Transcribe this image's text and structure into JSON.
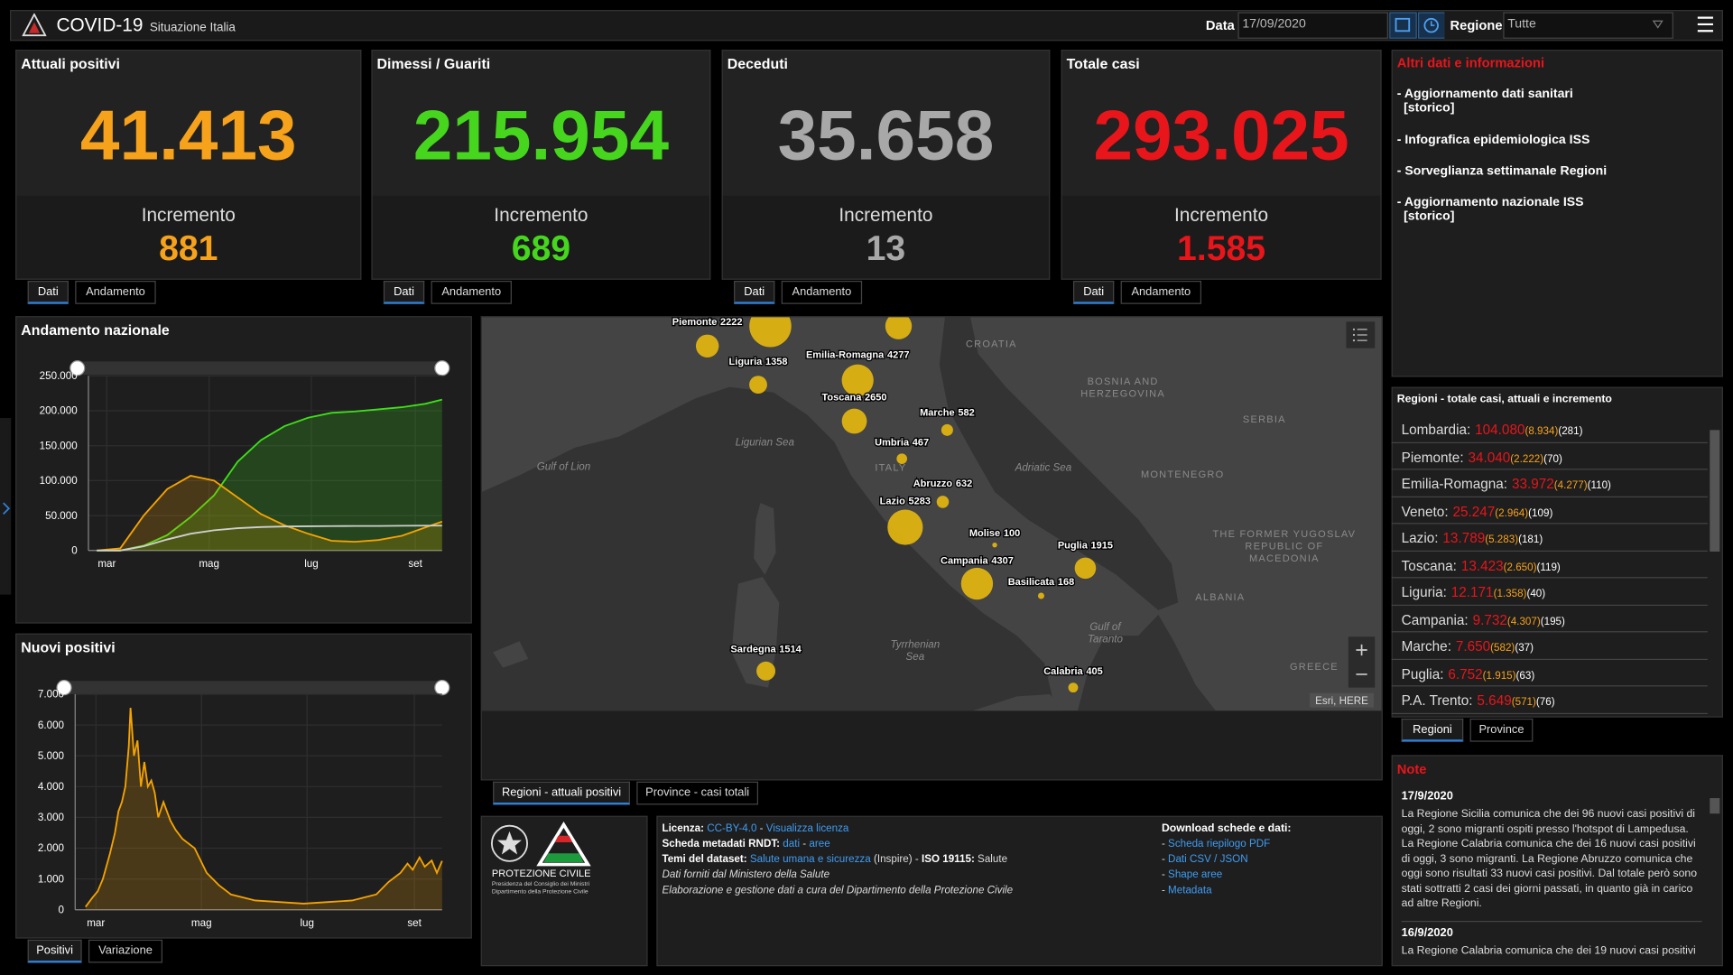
{
  "header": {
    "title": "COVID-19",
    "subtitle": "Situazione Italia",
    "date_label": "Data",
    "date": "17/09/2020",
    "region_label": "Regione",
    "region": "Tutte"
  },
  "cards": [
    {
      "title": "Attuali positivi",
      "value": "41.413",
      "increment_label": "Incremento",
      "increment": "881",
      "color": "#f7a21b",
      "tabs": [
        "Dati",
        "Andamento"
      ]
    },
    {
      "title": "Dimessi / Guariti",
      "value": "215.954",
      "increment_label": "Incremento",
      "increment": "689",
      "color": "#45d61d",
      "tabs": [
        "Dati",
        "Andamento"
      ]
    },
    {
      "title": "Deceduti",
      "value": "35.658",
      "increment_label": "Incremento",
      "increment": "13",
      "color": "#a8a8a8",
      "tabs": [
        "Dati",
        "Andamento"
      ]
    },
    {
      "title": "Totale casi",
      "value": "293.025",
      "increment_label": "Incremento",
      "increment": "1.585",
      "color": "#e8151b",
      "tabs": [
        "Dati",
        "Andamento"
      ]
    }
  ],
  "info": {
    "title": "Altri dati e informazioni",
    "links": [
      {
        "text": "- Aggiornamento dati sanitari",
        "sub": "[storico]"
      },
      {
        "text": "- Infografica epidemiologica ISS"
      },
      {
        "text": "- Sorveglianza settimanale Regioni"
      },
      {
        "text": "- Aggiornamento nazionale ISS",
        "sub": "[storico]"
      }
    ]
  },
  "trend_chart": {
    "type": "line",
    "title": "Andamento nazionale",
    "grid": true,
    "x": [
      0,
      14,
      28,
      42,
      56,
      70,
      84,
      98,
      112,
      126,
      140,
      154,
      168,
      182,
      196,
      206
    ],
    "xlim": [
      -5,
      206
    ],
    "xticks": [
      {
        "value": 6,
        "label": "mar"
      },
      {
        "value": 67,
        "label": "mag"
      },
      {
        "value": 128,
        "label": "lug"
      },
      {
        "value": 190,
        "label": "set"
      }
    ],
    "ylim": [
      0,
      250000
    ],
    "yticks": [
      0,
      {
        "value": 50000,
        "label": "50.000"
      },
      {
        "value": 100000,
        "label": "100.000"
      },
      {
        "value": 150000,
        "label": "150.000"
      },
      {
        "value": 200000,
        "label": "200.000"
      },
      {
        "value": 250000,
        "label": "250.000"
      }
    ],
    "series": [
      {
        "color": "#3ee01a",
        "area": true,
        "values": [
          0,
          0,
          7000,
          22000,
          48000,
          79000,
          127000,
          158000,
          178000,
          190000,
          197000,
          199000,
          202000,
          205000,
          210000,
          215954
        ]
      },
      {
        "color": "#f5a300",
        "area": true,
        "values": [
          0,
          3000,
          50000,
          88000,
          107000,
          100000,
          76000,
          52000,
          36000,
          24000,
          14000,
          12500,
          15000,
          21000,
          33000,
          41413
        ]
      },
      {
        "color": "#d0d0d0",
        "area": false,
        "values": [
          0,
          50,
          6000,
          15900,
          24000,
          29000,
          32000,
          33500,
          34400,
          34700,
          35000,
          35100,
          35200,
          35400,
          35550,
          35658
        ]
      }
    ]
  },
  "new_chart": {
    "type": "line",
    "title": "Nuovi positivi",
    "grid": true,
    "x": [
      0,
      4,
      7,
      10,
      14,
      17,
      19,
      21,
      23,
      25,
      26,
      28,
      30,
      32,
      34,
      36,
      38,
      40,
      42,
      45,
      49,
      52,
      56,
      63,
      70,
      77,
      84,
      91,
      98,
      112,
      126,
      140,
      154,
      161,
      168,
      175,
      182,
      186,
      189,
      193,
      196,
      200,
      203,
      206
    ],
    "xlim": [
      -6,
      206
    ],
    "xticks": [
      {
        "value": 6,
        "label": "mar"
      },
      {
        "value": 67,
        "label": "mag"
      },
      {
        "value": 128,
        "label": "lug"
      },
      {
        "value": 190,
        "label": "set"
      }
    ],
    "ylim": [
      0,
      7000
    ],
    "yticks": [
      0,
      {
        "value": 1000,
        "label": "1.000"
      },
      {
        "value": 2000,
        "label": "2.000"
      },
      {
        "value": 3000,
        "label": "3.000"
      },
      {
        "value": 4000,
        "label": "4.000"
      },
      {
        "value": 5000,
        "label": "5.000"
      },
      {
        "value": 6000,
        "label": "6.000"
      },
      {
        "value": 7000,
        "label": "7.000"
      }
    ],
    "series": [
      {
        "color": "#f5a300",
        "area": true,
        "values": [
          93,
          400,
          600,
          1000,
          1800,
          2500,
          3200,
          3500,
          4000,
          5300,
          6557,
          5000,
          5500,
          4000,
          4800,
          4000,
          4200,
          3800,
          3000,
          3500,
          2900,
          2600,
          2300,
          2000,
          1200,
          800,
          500,
          400,
          300,
          250,
          200,
          250,
          300,
          400,
          500,
          900,
          1200,
          1500,
          1300,
          1700,
          1400,
          1600,
          1200,
          1585
        ]
      }
    ],
    "tabs": [
      "Positivi",
      "Variazione"
    ]
  },
  "map": {
    "points": [
      {
        "name": "Piemonte",
        "value": 2222
      },
      {
        "name": "Liguria",
        "value": 1358
      },
      {
        "name": "Emilia-Romagna",
        "value": 4277
      },
      {
        "name": "Toscana",
        "value": 2650
      },
      {
        "name": "Marche",
        "value": 582
      },
      {
        "name": "Umbria",
        "value": 467
      },
      {
        "name": "Abruzzo",
        "value": 632
      },
      {
        "name": "Lazio",
        "value": 5283
      },
      {
        "name": "Molise",
        "value": 100
      },
      {
        "name": "Puglia",
        "value": 1915
      },
      {
        "name": "Campania",
        "value": 4307
      },
      {
        "name": "Basilicata",
        "value": 168
      },
      {
        "name": "Sardegna",
        "value": 1514
      },
      {
        "name": "Calabria",
        "value": 405
      }
    ],
    "labels": [
      {
        "lines": [
          "CROATIA"
        ]
      },
      {
        "lines": [
          "BOSNIA AND",
          "HERZEGOVINA"
        ]
      },
      {
        "lines": [
          "SERBIA"
        ]
      },
      {
        "lines": [
          "MONTENEGRO"
        ]
      },
      {
        "lines": [
          "ITALY"
        ]
      },
      {
        "lines": [
          "Ligurian Sea"
        ]
      },
      {
        "lines": [
          "Gulf of Lion"
        ]
      },
      {
        "lines": [
          "Adriatic Sea"
        ]
      },
      {
        "lines": [
          "Tyrrhenian",
          "Sea"
        ]
      },
      {
        "lines": [
          "Gulf of",
          "Taranto"
        ]
      },
      {
        "lines": [
          "ALBANIA"
        ]
      },
      {
        "lines": [
          "THE FORMER YUGOSLAV",
          "REPUBLIC OF",
          "MACEDONIA"
        ]
      },
      {
        "lines": [
          "GREECE"
        ]
      }
    ],
    "attribution": "Esri, HERE",
    "tabs": [
      "Regioni - attuali positivi",
      "Province - casi totali"
    ]
  },
  "footer": {
    "logo_title": "PROTEZIONE CIVILE",
    "logo_sub1": "Presidenza del Consiglio dei Ministri",
    "logo_sub2": "Dipartimento della Protezione Civile",
    "lines": [
      [
        {
          "text": "Licenza:",
          "style": "b"
        },
        {
          "text": " CC-BY-4.0",
          "style": "a"
        },
        {
          "text": " - ",
          "style": "t"
        },
        {
          "text": "Visualizza licenza",
          "style": "a"
        }
      ],
      [
        {
          "text": "Scheda metadati RNDT:",
          "style": "b"
        },
        {
          "text": " dati",
          "style": "a"
        },
        {
          "text": " - ",
          "style": "t"
        },
        {
          "text": "aree",
          "style": "a"
        }
      ],
      [
        {
          "text": "Temi del dataset:",
          "style": "b"
        },
        {
          "text": " Salute umana e sicurezza",
          "style": "a"
        },
        {
          "text": " (Inspire) - ",
          "style": "t"
        },
        {
          "text": "ISO 19115:",
          "style": "b"
        },
        {
          "text": " Salute",
          "style": "t"
        }
      ],
      [
        {
          "text": "Dati forniti dal Ministero della Salute",
          "style": "i"
        }
      ],
      [
        {
          "text": "Elaborazione e gestione dati a cura del Dipartimento della Protezione Civile",
          "style": "i"
        }
      ]
    ],
    "download_title": "Download schede e dati:",
    "downloads": [
      [
        {
          "text": "- ",
          "style": "t"
        },
        {
          "text": "Scheda riepilogo PDF",
          "style": "a"
        }
      ],
      [
        {
          "text": "- ",
          "style": "t"
        },
        {
          "text": "Dati CSV / JSON",
          "style": "a"
        }
      ],
      [
        {
          "text": "- ",
          "style": "t"
        },
        {
          "text": "Shape aree",
          "style": "a"
        }
      ],
      [
        {
          "text": "- ",
          "style": "t"
        },
        {
          "text": "Metadata",
          "style": "a"
        }
      ]
    ]
  },
  "regions": {
    "title": "Regioni - totale casi, attuali e incremento",
    "tabs": [
      "Regioni",
      "Province"
    ],
    "rows": [
      {
        "name": "Lombardia:",
        "total": "104.080",
        "current": "(8.934)",
        "increment": "(281)"
      },
      {
        "name": "Piemonte:",
        "total": "34.040",
        "current": "(2.222)",
        "increment": "(70)"
      },
      {
        "name": "Emilia-Romagna:",
        "total": "33.972",
        "current": "(4.277)",
        "increment": "(110)"
      },
      {
        "name": "Veneto:",
        "total": "25.247",
        "current": "(2.964)",
        "increment": "(109)"
      },
      {
        "name": "Lazio:",
        "total": "13.789",
        "current": "(5.283)",
        "increment": "(181)"
      },
      {
        "name": "Toscana:",
        "total": "13.423",
        "current": "(2.650)",
        "increment": "(119)"
      },
      {
        "name": "Liguria:",
        "total": "12.171",
        "current": "(1.358)",
        "increment": "(40)"
      },
      {
        "name": "Campania:",
        "total": "9.732",
        "current": "(4.307)",
        "increment": "(195)"
      },
      {
        "name": "Marche:",
        "total": "7.650",
        "current": "(582)",
        "increment": "(37)"
      },
      {
        "name": "Puglia:",
        "total": "6.752",
        "current": "(1.915)",
        "increment": "(63)"
      },
      {
        "name": "P.A. Trento:",
        "total": "5.649",
        "current": "(571)",
        "increment": "(76)"
      }
    ]
  },
  "notes": {
    "title": "Note",
    "entries": [
      {
        "date": "17/9/2020",
        "text": "La Regione Sicilia comunica che dei 96 nuovi casi positivi di oggi, 2 sono migranti ospiti presso l'hotspot di Lampedusa. La Regione Calabria comunica che dei 16 nuovi casi positivi di oggi, 3 sono migranti. La Regione Abruzzo comunica che oggi sono risultati 33 nuovi casi positivi. Dal totale però sono stati sottratti 2 casi dei giorni passati, in quanto già in carico ad altre Regioni."
      },
      {
        "date": "16/9/2020",
        "text": "La Regione Calabria comunica che dei 19 nuovi casi positivi"
      }
    ]
  }
}
